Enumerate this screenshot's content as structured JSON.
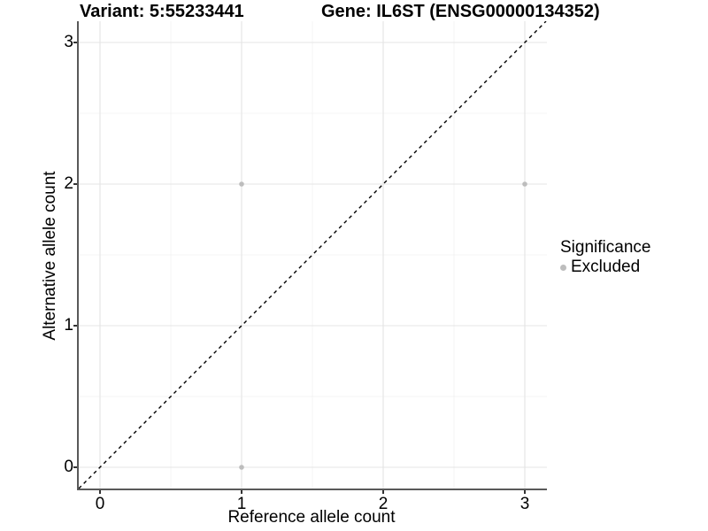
{
  "chart_data": {
    "type": "scatter",
    "title_variant": "Variant: 5:55233441",
    "title_gene": "Gene: IL6ST (ENSG00000134352)",
    "xlabel": "Reference allele count",
    "ylabel": "Alternative allele count",
    "xlim": [
      -0.15,
      3.15
    ],
    "ylim": [
      -0.15,
      3.15
    ],
    "xticks": [
      0,
      1,
      2,
      3
    ],
    "yticks": [
      0,
      1,
      2,
      3
    ],
    "x_minor": [
      0.5,
      1.5,
      2.5
    ],
    "y_minor": [
      0.5,
      1.5,
      2.5
    ],
    "grid": true,
    "identity_line": {
      "style": "dashed",
      "from": [
        -0.15,
        -0.15
      ],
      "to": [
        3.15,
        3.15
      ]
    },
    "series": [
      {
        "name": "Excluded",
        "points": [
          {
            "x": 1,
            "y": 0
          },
          {
            "x": 1,
            "y": 2
          },
          {
            "x": 3,
            "y": 2
          }
        ]
      }
    ],
    "legend": {
      "position": "right",
      "title": "Significance",
      "entries": [
        {
          "label": "Excluded",
          "color": "#bdbdbd"
        }
      ]
    }
  },
  "colors": {
    "background": "#ffffff",
    "point": "#bdbdbd",
    "grid_major": "#e4e4e4",
    "grid_minor": "#f2f2f2",
    "axis_line": "#595959",
    "tick_mark": "#333333",
    "dashed_line": "#000000",
    "text": "#000000"
  }
}
